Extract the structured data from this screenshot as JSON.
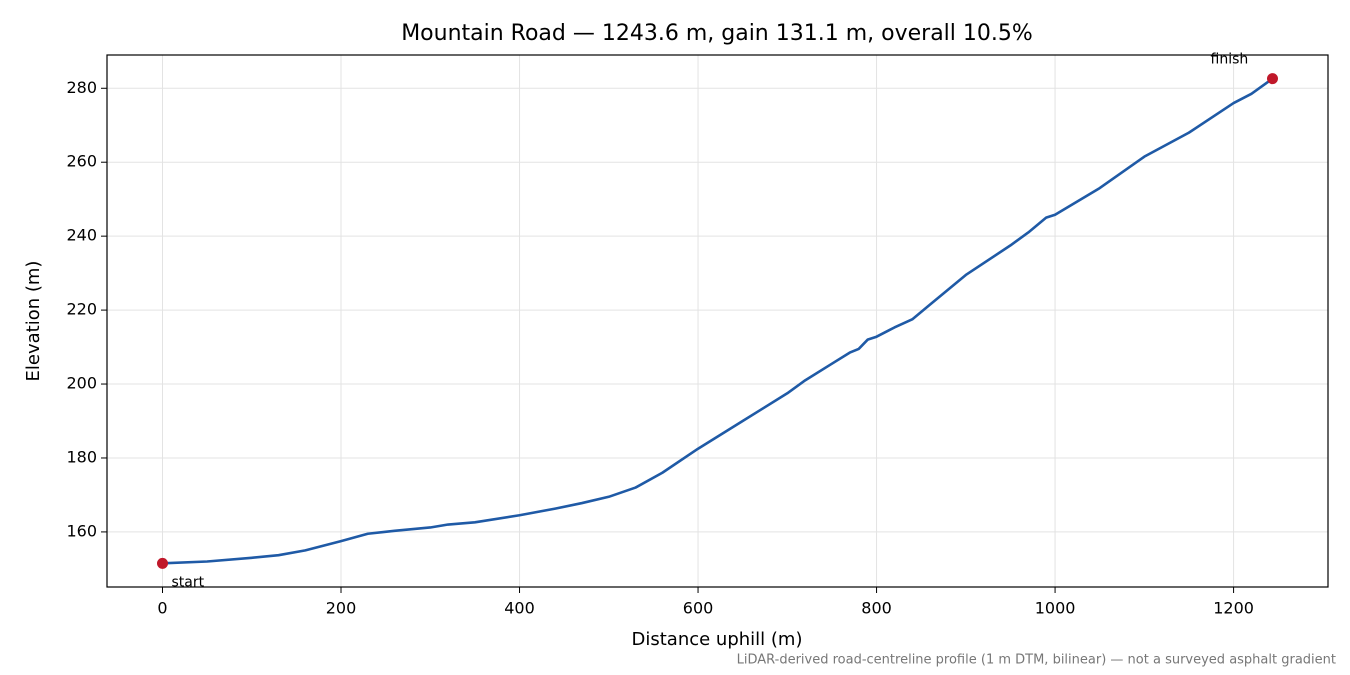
{
  "chart_data": {
    "type": "line",
    "title": "Mountain Road — 1243.6 m, gain 131.1 m, overall 10.5%",
    "xlabel": "Distance uphill (m)",
    "ylabel": "Elevation (m)",
    "note": "LiDAR-derived road-centreline profile (1 m DTM, bilinear) — not a surveyed asphalt gradient",
    "x": [
      0,
      50,
      100,
      130,
      160,
      200,
      230,
      260,
      300,
      320,
      350,
      400,
      440,
      470,
      500,
      530,
      560,
      600,
      650,
      700,
      720,
      750,
      770,
      780,
      790,
      800,
      820,
      840,
      860,
      900,
      950,
      970,
      990,
      1000,
      1050,
      1100,
      1150,
      1200,
      1220,
      1243.6
    ],
    "series": [
      {
        "color": "#1f5aa6",
        "values": [
          151.5,
          152.0,
          153.0,
          153.7,
          155,
          157.5,
          159.5,
          160.3,
          161.2,
          162,
          162.6,
          164.5,
          166.3,
          167.8,
          169.5,
          172,
          176,
          182.5,
          190,
          197.5,
          201,
          205.5,
          208.5,
          209.5,
          212,
          212.8,
          215.3,
          217.5,
          221.5,
          229.5,
          237.5,
          241,
          245,
          245.8,
          253,
          261.5,
          268,
          276,
          278.5,
          282.6
        ]
      }
    ],
    "annotations": [
      {
        "label": "start",
        "x": 0,
        "y": 151.5
      },
      {
        "label": "finish",
        "x": 1243.6,
        "y": 282.6
      }
    ],
    "marker_color": "#c0182a",
    "xlim": [
      -62.18,
      1305.78
    ],
    "xticks": [
      0,
      200,
      400,
      600,
      800,
      1000,
      1200
    ],
    "ylim": [
      145.1,
      289
    ],
    "yticks": [
      160,
      180,
      200,
      220,
      240,
      260,
      280
    ],
    "grid": true
  }
}
